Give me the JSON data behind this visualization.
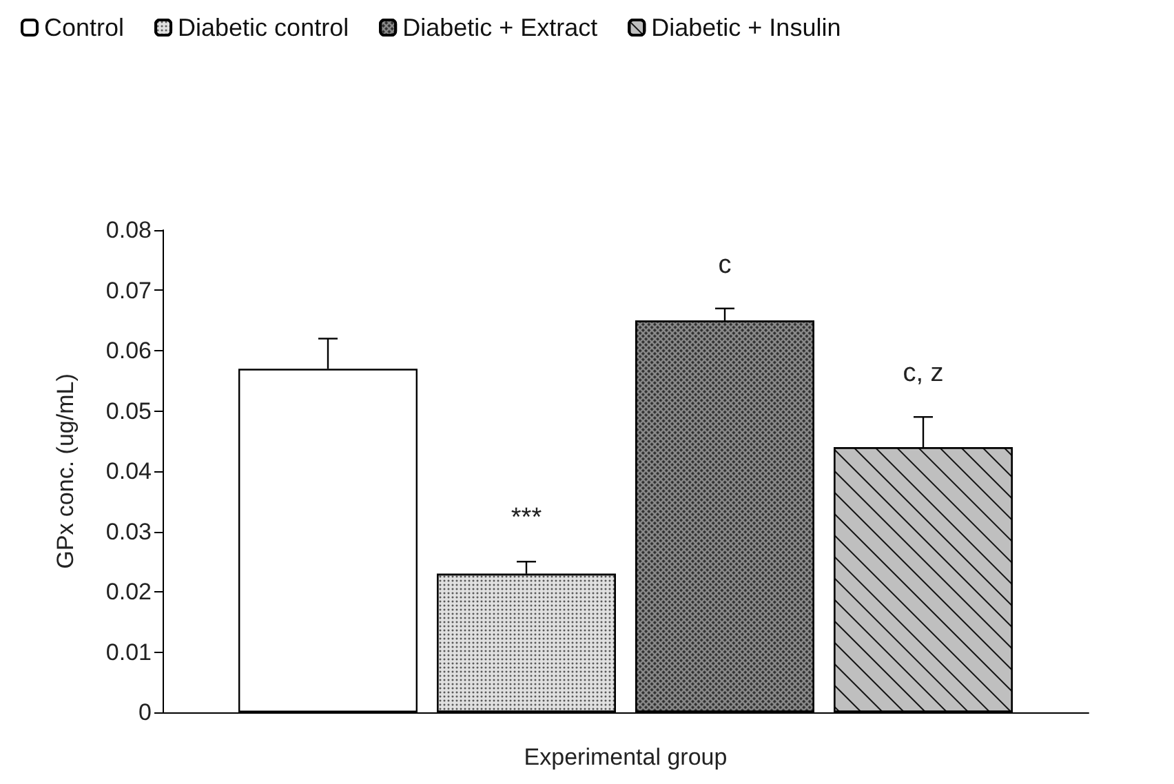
{
  "chart_data": {
    "type": "bar",
    "xlabel": "Experimental group",
    "ylabel": "GPx conc. (ug/mL)",
    "categories": [
      null
    ],
    "series": [
      {
        "name": "Control",
        "color": "#ffffff",
        "values": [
          0.057
        ],
        "errors": [
          0.005
        ]
      },
      {
        "name": "Diabetic control",
        "color": "#e0e0e0",
        "values": [
          0.023
        ],
        "errors": [
          0.002
        ],
        "value_labels": [
          "***"
        ]
      },
      {
        "name": "Diabetic + Extract",
        "color": "#8c8c8c",
        "values": [
          0.065
        ],
        "errors": [
          0.002
        ],
        "value_labels": [
          "c"
        ]
      },
      {
        "name": "Diabetic + Insulin",
        "color": "#bfbfbf",
        "values": [
          0.044
        ],
        "errors": [
          0.005
        ],
        "value_labels": [
          "c, z"
        ]
      }
    ],
    "ylim": [
      0,
      0.08
    ],
    "yticks": [
      0,
      0.01,
      0.02,
      0.03,
      0.04,
      0.05,
      0.06,
      0.07,
      0.08
    ],
    "grid": false,
    "legend": "top left"
  }
}
